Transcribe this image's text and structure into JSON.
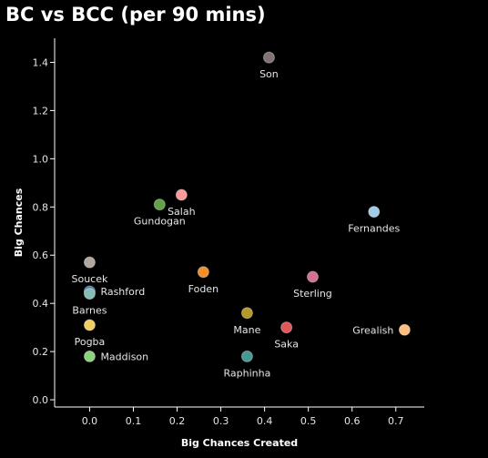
{
  "chart_data": {
    "type": "scatter",
    "title": "BC vs BCC (per 90 mins)",
    "xlabel": "Big Chances Created",
    "ylabel": "Big Chances",
    "xlim": [
      -0.08,
      0.765
    ],
    "ylim": [
      -0.03,
      1.5
    ],
    "xticks": [
      "0.0",
      "0.1",
      "0.2",
      "0.3",
      "0.4",
      "0.5",
      "0.6",
      "0.7"
    ],
    "yticks": [
      "0.0",
      "0.2",
      "0.4",
      "0.6",
      "0.8",
      "1.0",
      "1.2",
      "1.4"
    ],
    "grid": false,
    "points": [
      {
        "name": "Son",
        "x": 0.41,
        "y": 1.42,
        "color": "#7f7473",
        "label_pos": "below"
      },
      {
        "name": "Salah",
        "x": 0.21,
        "y": 0.85,
        "color": "#f79a98",
        "label_pos": "below"
      },
      {
        "name": "Gundogan",
        "x": 0.16,
        "y": 0.81,
        "color": "#5fa345",
        "label_pos": "below"
      },
      {
        "name": "Fernandes",
        "x": 0.65,
        "y": 0.78,
        "color": "#a0cbe8",
        "label_pos": "below"
      },
      {
        "name": "Soucek",
        "x": 0.0,
        "y": 0.57,
        "color": "#b2a7a1",
        "label_pos": "below"
      },
      {
        "name": "Foden",
        "x": 0.26,
        "y": 0.53,
        "color": "#f28e2b",
        "label_pos": "below"
      },
      {
        "name": "Sterling",
        "x": 0.51,
        "y": 0.51,
        "color": "#d37295",
        "label_pos": "below"
      },
      {
        "name": "Rashford",
        "x": 0.0,
        "y": 0.45,
        "color": "#4e79a7",
        "label_pos": "right"
      },
      {
        "name": "Barnes",
        "x": 0.0,
        "y": 0.44,
        "color": "#86bcb6",
        "label_pos": "below"
      },
      {
        "name": "Mane",
        "x": 0.36,
        "y": 0.36,
        "color": "#b6992d",
        "label_pos": "below"
      },
      {
        "name": "Pogba",
        "x": 0.0,
        "y": 0.31,
        "color": "#f1ce63",
        "label_pos": "below"
      },
      {
        "name": "Saka",
        "x": 0.45,
        "y": 0.3,
        "color": "#e15759",
        "label_pos": "below"
      },
      {
        "name": "Grealish",
        "x": 0.72,
        "y": 0.29,
        "color": "#ffbe7d",
        "label_pos": "left"
      },
      {
        "name": "Maddison",
        "x": 0.0,
        "y": 0.18,
        "color": "#8cd17d",
        "label_pos": "right"
      },
      {
        "name": "Raphinha",
        "x": 0.36,
        "y": 0.18,
        "color": "#499894",
        "label_pos": "below"
      }
    ]
  }
}
